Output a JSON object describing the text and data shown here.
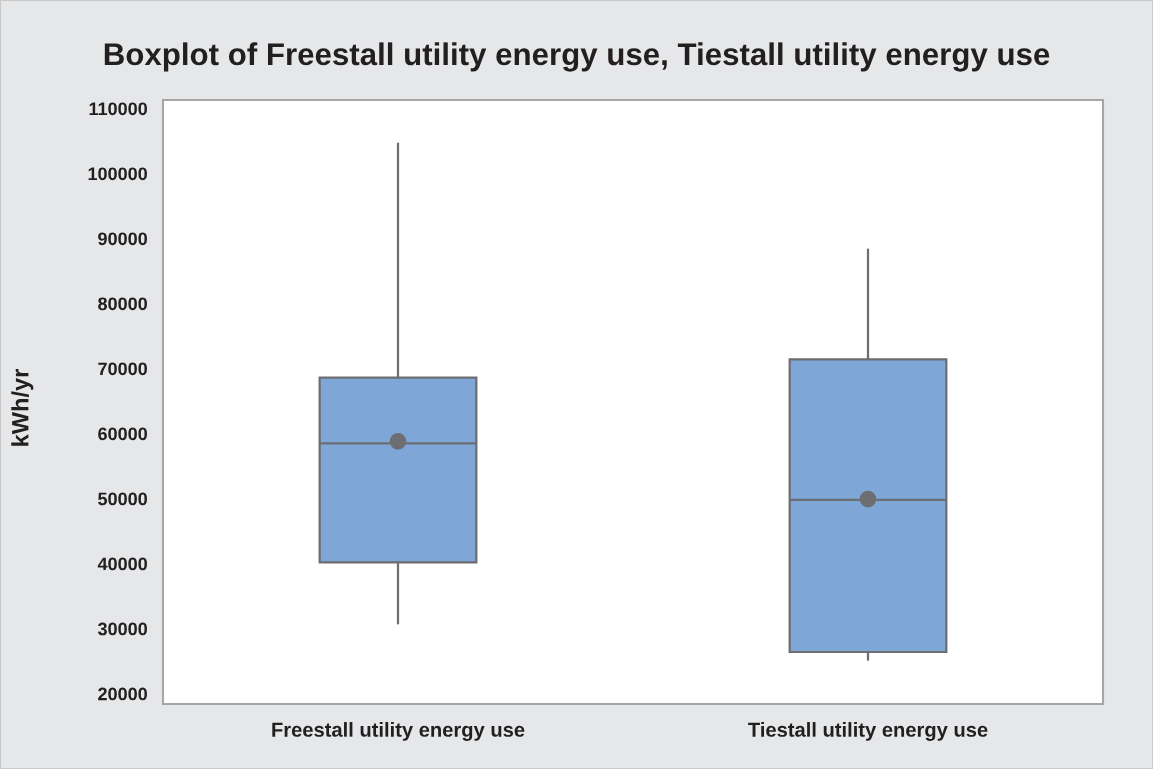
{
  "chart_data": {
    "type": "box",
    "title": "Boxplot of Freestall utility energy use, Tiestall utility energy use",
    "ylabel": "kWh/yr",
    "categories": [
      "Freestall utility energy use",
      "Tiestall utility energy use"
    ],
    "color": "#7ea7d8",
    "marker": "circle",
    "boxes": [
      {
        "low": 30800,
        "q1": 40200,
        "median": 58500,
        "q3": 68600,
        "high": 104600,
        "mean": 58800
      },
      {
        "low": 25200,
        "q1": 26400,
        "median": 49800,
        "q3": 71400,
        "high": 88300,
        "mean": 49900
      }
    ],
    "ylim": [
      18400,
      111300
    ],
    "yticks": [
      20000,
      30000,
      40000,
      50000,
      60000,
      70000,
      80000,
      90000,
      100000,
      110000
    ]
  }
}
